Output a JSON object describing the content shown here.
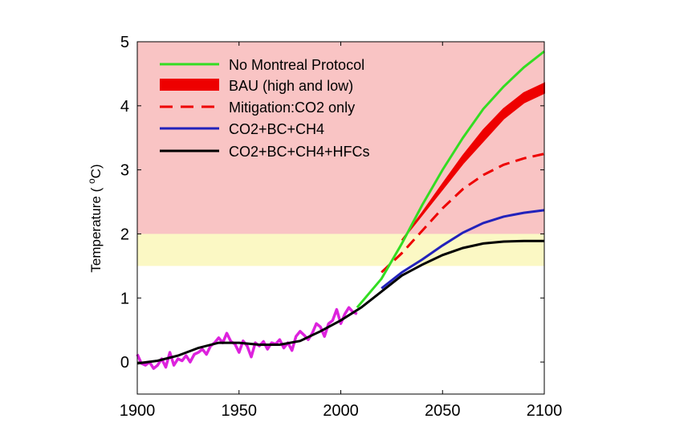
{
  "chart_data": {
    "type": "line",
    "title": "",
    "xlabel": "",
    "ylabel_main": "Temperature ( ",
    "ylabel_sup": "o",
    "ylabel_unit": "C)",
    "xlim": [
      1900,
      2100
    ],
    "ylim": [
      -0.5,
      5
    ],
    "xticks": [
      "1900",
      "1950",
      "2000",
      "2050",
      "2100"
    ],
    "yticks": [
      "0",
      "1",
      "2",
      "3",
      "4",
      "5"
    ],
    "grid": false,
    "legend_position": "top-left",
    "bands": [
      {
        "from": 2,
        "to": 5,
        "color": "#f9c4c4"
      },
      {
        "from": 1.5,
        "to": 2,
        "color": "#fbf8c4"
      }
    ],
    "series": [
      {
        "name": "No Montreal Protocol",
        "color": "#33dd22",
        "style": "solid",
        "x": [
          2008,
          2020,
          2030,
          2040,
          2050,
          2060,
          2070,
          2080,
          2090,
          2100
        ],
        "y": [
          0.85,
          1.3,
          1.85,
          2.45,
          3.0,
          3.5,
          3.95,
          4.3,
          4.6,
          4.85
        ]
      },
      {
        "name": "BAU (high and low)",
        "color": "#ee0000",
        "style": "band",
        "x": [
          2030,
          2040,
          2050,
          2060,
          2070,
          2080,
          2090,
          2100
        ],
        "y_low": [
          1.9,
          2.3,
          2.7,
          3.1,
          3.45,
          3.8,
          4.05,
          4.2
        ],
        "y_high": [
          1.9,
          2.33,
          2.78,
          3.22,
          3.62,
          3.95,
          4.2,
          4.35
        ]
      },
      {
        "name": "Mitigation:CO2 only",
        "color": "#ee0000",
        "style": "dashed",
        "x": [
          2020,
          2030,
          2040,
          2050,
          2060,
          2070,
          2080,
          2090,
          2100
        ],
        "y": [
          1.4,
          1.7,
          2.05,
          2.4,
          2.7,
          2.92,
          3.08,
          3.18,
          3.25
        ]
      },
      {
        "name": "CO2+BC+CH4",
        "color": "#2222bb",
        "style": "solid",
        "x": [
          2020,
          2030,
          2040,
          2050,
          2060,
          2070,
          2080,
          2090,
          2100
        ],
        "y": [
          1.15,
          1.4,
          1.6,
          1.82,
          2.02,
          2.17,
          2.27,
          2.33,
          2.37
        ]
      },
      {
        "name": "CO2+BC+CH4+HFCs",
        "color": "#000000",
        "style": "solid",
        "x": [
          1900,
          1910,
          1920,
          1930,
          1940,
          1950,
          1960,
          1970,
          1980,
          1990,
          2000,
          2010,
          2020,
          2030,
          2040,
          2050,
          2060,
          2070,
          2080,
          2090,
          2100
        ],
        "y": [
          -0.02,
          0.02,
          0.1,
          0.22,
          0.3,
          0.3,
          0.27,
          0.27,
          0.33,
          0.48,
          0.65,
          0.85,
          1.1,
          1.35,
          1.52,
          1.67,
          1.78,
          1.85,
          1.88,
          1.89,
          1.89
        ]
      }
    ],
    "observed": {
      "color": "#dd22dd",
      "x": [
        1900,
        1902,
        1904,
        1906,
        1908,
        1910,
        1912,
        1914,
        1916,
        1918,
        1920,
        1922,
        1924,
        1926,
        1928,
        1930,
        1932,
        1934,
        1936,
        1938,
        1940,
        1942,
        1944,
        1946,
        1948,
        1950,
        1952,
        1954,
        1956,
        1958,
        1960,
        1962,
        1964,
        1966,
        1968,
        1970,
        1972,
        1974,
        1976,
        1978,
        1980,
        1982,
        1984,
        1986,
        1988,
        1990,
        1992,
        1994,
        1996,
        1998,
        2000,
        2002,
        2004,
        2006,
        2008
      ],
      "y": [
        0.12,
        -0.02,
        -0.05,
        0.0,
        -0.1,
        -0.05,
        0.05,
        -0.08,
        0.15,
        -0.05,
        0.05,
        0.02,
        0.1,
        0.0,
        0.12,
        0.15,
        0.2,
        0.12,
        0.25,
        0.3,
        0.38,
        0.3,
        0.45,
        0.32,
        0.28,
        0.15,
        0.33,
        0.25,
        0.08,
        0.3,
        0.25,
        0.32,
        0.2,
        0.3,
        0.28,
        0.35,
        0.22,
        0.3,
        0.18,
        0.4,
        0.48,
        0.42,
        0.35,
        0.45,
        0.6,
        0.55,
        0.4,
        0.6,
        0.65,
        0.82,
        0.6,
        0.75,
        0.85,
        0.78,
        0.75
      ]
    }
  }
}
